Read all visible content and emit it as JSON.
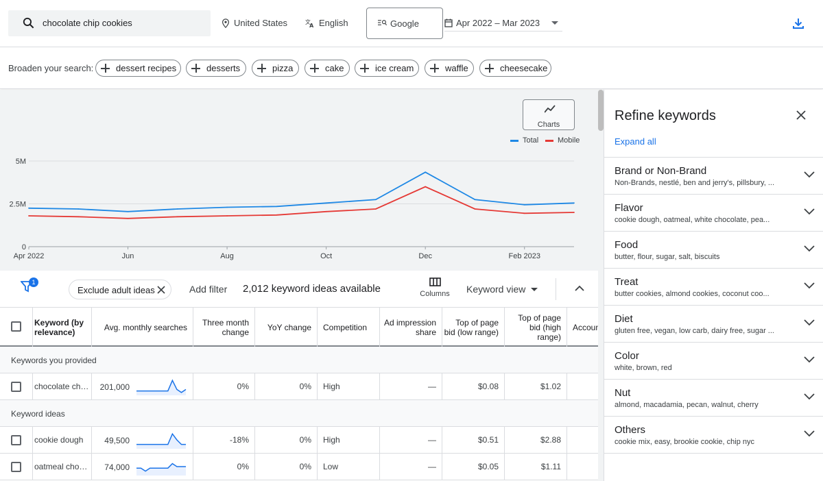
{
  "colors": {
    "accent": "#1a73e8",
    "total_line": "#1e88e5",
    "mobile_line": "#e53935"
  },
  "topbar": {
    "search_value": "chocolate chip cookies",
    "location": "United States",
    "language": "English",
    "network": "Google",
    "date_range": "Apr 2022 – Mar 2023"
  },
  "broaden": {
    "label": "Broaden your search:",
    "chips": [
      "dessert recipes",
      "desserts",
      "pizza",
      "cake",
      "ice cream",
      "waffle",
      "cheesecake"
    ]
  },
  "charts_button": {
    "label": "Charts"
  },
  "chart_data": {
    "type": "line",
    "x": [
      "Apr 2022",
      "May",
      "Jun",
      "Jul",
      "Aug",
      "Sep",
      "Oct",
      "Nov",
      "Dec",
      "Jan",
      "Feb 2023",
      "Mar"
    ],
    "x_tick_labels": [
      "Apr 2022",
      "Jun",
      "Aug",
      "Oct",
      "Dec",
      "Feb 2023"
    ],
    "y_tick_labels": [
      "0",
      "2.5M",
      "5M"
    ],
    "ylim": [
      0,
      5000000
    ],
    "grid": true,
    "legend_position": "top-right",
    "series": [
      {
        "name": "Total",
        "values": [
          2250000,
          2200000,
          2050000,
          2200000,
          2300000,
          2350000,
          2550000,
          2750000,
          4350000,
          2750000,
          2450000,
          2550000
        ]
      },
      {
        "name": "Mobile",
        "values": [
          1800000,
          1750000,
          1650000,
          1750000,
          1800000,
          1850000,
          2050000,
          2200000,
          3500000,
          2200000,
          1950000,
          2000000
        ]
      }
    ]
  },
  "toolbar": {
    "filter_badge": "1",
    "exclude_chip": "Exclude adult ideas",
    "add_filter": "Add filter",
    "ideas_count": "2,012 keyword ideas available",
    "columns_label": "Columns",
    "keyword_view": "Keyword view"
  },
  "table": {
    "headers": {
      "keyword": "Keyword (by relevance)",
      "avg_searches": "Avg. monthly searches",
      "three_month": "Three month change",
      "yoy": "YoY change",
      "competition": "Competition",
      "impression_share": "Ad impression share",
      "bid_low": "Top of page bid (low range)",
      "bid_high": "Top of page bid (high range)",
      "account": "Accoun"
    },
    "sections": {
      "provided": "Keywords you provided",
      "ideas": "Keyword ideas"
    },
    "rows": [
      {
        "keyword": "chocolate ch…",
        "avg": "201,000",
        "three_month": "0%",
        "yoy": "0%",
        "competition": "High",
        "impression": "—",
        "bid_low": "$0.08",
        "bid_high": "$1.02",
        "trend": [
          2,
          2,
          2,
          2,
          2,
          2,
          2,
          2,
          9,
          3,
          1,
          3
        ]
      },
      {
        "keyword": "cookie dough",
        "avg": "49,500",
        "three_month": "-18%",
        "yoy": "0%",
        "competition": "High",
        "impression": "—",
        "bid_low": "$0.51",
        "bid_high": "$2.88",
        "trend": [
          2,
          2,
          2,
          2,
          2,
          2,
          2,
          2,
          9,
          5,
          2,
          2
        ]
      },
      {
        "keyword": "oatmeal cho…",
        "avg": "74,000",
        "three_month": "0%",
        "yoy": "0%",
        "competition": "Low",
        "impression": "—",
        "bid_low": "$0.05",
        "bid_high": "$1.11",
        "trend": [
          4,
          4,
          2,
          4,
          4,
          4,
          4,
          4,
          7,
          5,
          5,
          5
        ]
      }
    ]
  },
  "refine": {
    "title": "Refine keywords",
    "expand_all": "Expand all",
    "items": [
      {
        "name": "Brand or Non-Brand",
        "sub": "Non-Brands, nestlé, ben and jerry's, pillsbury, ..."
      },
      {
        "name": "Flavor",
        "sub": "cookie dough, oatmeal, white chocolate, pea..."
      },
      {
        "name": "Food",
        "sub": "butter, flour, sugar, salt, biscuits"
      },
      {
        "name": "Treat",
        "sub": "butter cookies, almond cookies, coconut coo..."
      },
      {
        "name": "Diet",
        "sub": "gluten free, vegan, low carb, dairy free, sugar ..."
      },
      {
        "name": "Color",
        "sub": "white, brown, red"
      },
      {
        "name": "Nut",
        "sub": "almond, macadamia, pecan, walnut, cherry"
      },
      {
        "name": "Others",
        "sub": "cookie mix, easy, brookie cookie, chip nyc"
      }
    ]
  }
}
